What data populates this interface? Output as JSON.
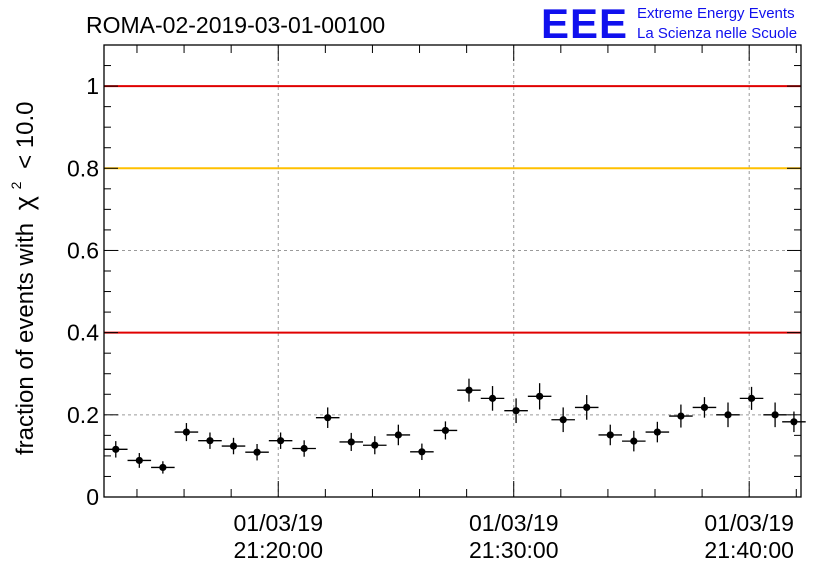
{
  "title": "ROMA-02-2019-03-01-00100",
  "logo": {
    "mark": "EEE",
    "line1": "Extreme Energy Events",
    "line2": "La Scienza nelle Scuole",
    "color": "#1010ee"
  },
  "chart_data": {
    "type": "scatter",
    "title": "ROMA-02-2019-03-01-00100",
    "xlabel": "",
    "ylabel": "fraction of events with",
    "ylabel_symbol": "χ",
    "ylabel_exponent": "2",
    "ylabel_suffix": "< 10.0",
    "x_tick_dates": [
      "01/03/19",
      "01/03/19",
      "01/03/19"
    ],
    "x_tick_times": [
      "21:20:00",
      "21:30:00",
      "21:40:00"
    ],
    "x_tick_minutes": [
      20,
      30,
      40
    ],
    "xlim_minutes": [
      12.6,
      42.2
    ],
    "y_ticks": [
      "0",
      "0.2",
      "0.4",
      "0.6",
      "0.8",
      "1"
    ],
    "y_tick_values": [
      0,
      0.2,
      0.4,
      0.6,
      0.8,
      1
    ],
    "ylim": [
      0,
      1.1
    ],
    "grid": true,
    "reference_lines": [
      {
        "y": 1.0,
        "color": "#e00000"
      },
      {
        "y": 0.8,
        "color": "#ffc000"
      },
      {
        "y": 0.4,
        "color": "#e00000"
      }
    ],
    "x_bin_width_minutes": 1.0,
    "points_x_minutes": [
      13.1,
      14.1,
      15.1,
      16.1,
      17.1,
      18.1,
      19.1,
      20.1,
      21.1,
      22.1,
      23.1,
      24.1,
      25.1,
      26.1,
      27.1,
      28.1,
      29.1,
      30.1,
      31.1,
      32.1,
      33.1,
      34.1,
      35.1,
      36.1,
      37.1,
      38.1,
      39.1,
      40.1,
      41.1,
      41.9
    ],
    "points_y": [
      0.116,
      0.089,
      0.072,
      0.158,
      0.137,
      0.124,
      0.109,
      0.137,
      0.118,
      0.193,
      0.134,
      0.126,
      0.151,
      0.11,
      0.162,
      0.26,
      0.24,
      0.21,
      0.245,
      0.188,
      0.218,
      0.151,
      0.136,
      0.158,
      0.197,
      0.218,
      0.2,
      0.24,
      0.2,
      0.183
    ],
    "points_yerr": [
      0.02,
      0.018,
      0.015,
      0.022,
      0.02,
      0.02,
      0.02,
      0.02,
      0.02,
      0.025,
      0.022,
      0.022,
      0.025,
      0.02,
      0.022,
      0.028,
      0.03,
      0.03,
      0.032,
      0.03,
      0.03,
      0.025,
      0.025,
      0.025,
      0.028,
      0.025,
      0.03,
      0.028,
      0.03,
      0.025
    ]
  }
}
